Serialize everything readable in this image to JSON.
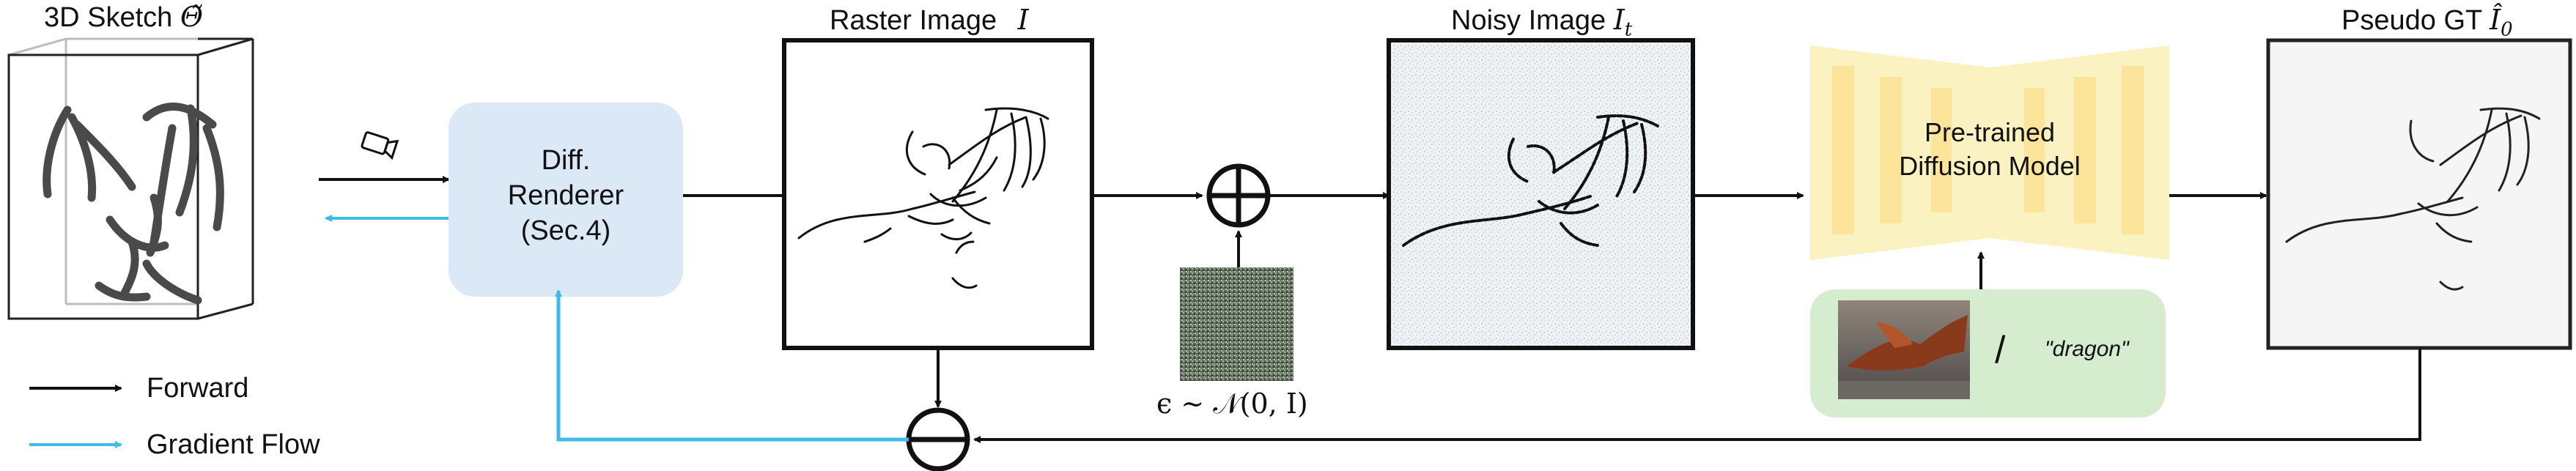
{
  "sketch3d": {
    "label": "3D Sketch",
    "symbol": "Θ̃"
  },
  "renderer": {
    "line1": "Diff.",
    "line2": "Renderer",
    "line3": "(Sec.4)"
  },
  "raster": {
    "label": "Raster Image",
    "symbol": "I"
  },
  "noise": {
    "formula": "ϵ ∼ 𝒩(0, I)"
  },
  "noisy": {
    "label": "Noisy Image",
    "symbol": "I",
    "subscript": "t"
  },
  "diffusion": {
    "line1": "Pre-trained",
    "line2": "Diffusion Model"
  },
  "condition": {
    "separator": "/",
    "prompt": "\"dragon\""
  },
  "pseudo": {
    "label": "Pseudo GT",
    "symbol": "Î",
    "subscript": "0"
  },
  "legend": {
    "forward": "Forward",
    "gradient": "Gradient Flow"
  },
  "colors": {
    "forward": "#111111",
    "gradient": "#3fbbe8",
    "renderer_fill": "#dbe8f6",
    "diffusion_fill": "#fbf2c2",
    "diffusion_bar": "#fce59a",
    "condition_fill": "#d6ecce"
  },
  "icons": {
    "camera": "camera-icon",
    "plus": "circle-plus-icon",
    "minus": "circle-minus-icon"
  }
}
